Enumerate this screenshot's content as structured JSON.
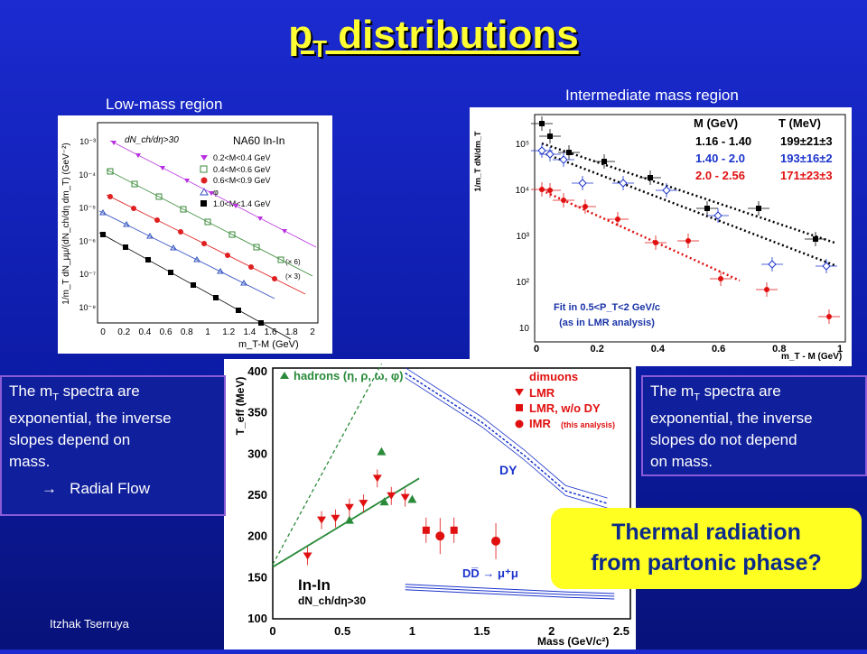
{
  "slide": {
    "title_main": "p",
    "title_sub": "T",
    "title_rest": " distributions",
    "caption_left": "Low-mass region",
    "caption_right": "Intermediate mass region",
    "left_text": {
      "line1a": "The m",
      "line1sub": "T",
      "line1b": " spectra are",
      "line2": "exponential, the inverse",
      "line3": "slopes depend on",
      "line4": "mass.",
      "arrow": "→",
      "flow": "Radial  Flow"
    },
    "right_text": {
      "line1a": "The m",
      "line1sub": "T",
      "line1b": " spectra are",
      "line2": "exponential, the inverse",
      "line3": "slopes do not depend",
      "line4": "on mass."
    },
    "highlight": {
      "line1": "Thermal radiation",
      "line2": "from partonic phase?"
    },
    "footer": "Itzhak Tserruya"
  },
  "plot_lmr": {
    "ylabel": "1/m_T dN_μμ/(dN_ch/dη dm_T) (GeV⁻²)",
    "xlabel": "m_T-M (GeV)",
    "label_dn": "dN_ch/dη>30",
    "label_exp": "NA60 In-In",
    "legend": [
      "0.2<M<0.4 GeV",
      "0.4<M<0.6 GeV",
      "0.6<M<0.9 GeV",
      "φ",
      "1.0<M<1.4 GeV"
    ],
    "scale1": "(× 6)",
    "scale2": "(× 3)",
    "xticks": [
      "0",
      "0.2",
      "0.4",
      "0.6",
      "0.8",
      "1",
      "1.2",
      "1.4",
      "1.6",
      "1.8",
      "2"
    ],
    "yticks": [
      "10⁻³",
      "10⁻⁴",
      "10⁻⁵",
      "10⁻⁶",
      "10⁻⁷",
      "10⁻⁸"
    ]
  },
  "plot_imr": {
    "ylabel": "1/m_T dN/dm_T",
    "xlabel": "m_T - M  (GeV)",
    "hdr_m": "M (GeV)",
    "hdr_t": "T (MeV)",
    "rows": [
      {
        "m": "1.16 - 1.40",
        "t": "199±21±3",
        "color": "#000000"
      },
      {
        "m": "1.40 - 2.0",
        "t": "193±16±2",
        "color": "#1a33cc"
      },
      {
        "m": "2.0  - 2.56",
        "t": "171±23±3",
        "color": "#e01010"
      }
    ],
    "fit1": "Fit in 0.5<P_T<2 GeV/c",
    "fit2": "(as in LMR analysis)",
    "xticks": [
      "0",
      "0.2",
      "0.4",
      "0.6",
      "0.8",
      "1"
    ],
    "yticks": [
      "10⁵",
      "10⁴",
      "10³",
      "10²",
      "10"
    ]
  },
  "plot_teff": {
    "ylabel": "T_eff (MeV)",
    "xlabel": "Mass (GeV/c²)",
    "hadrons": "hadrons (η, ρ, ω, φ)",
    "dimuons": "dimuons",
    "lmr": "LMR",
    "lmr_dy": "LMR, w/o DY",
    "imr": "IMR",
    "imr_note": "(this analysis)",
    "dy": "DY",
    "ddbar": "DD̅ → μ⁺μ",
    "inin": "In-In",
    "dn": "dN_ch/dη>30",
    "xticks": [
      "0",
      "0.5",
      "1",
      "1.5",
      "2",
      "2.5"
    ],
    "yticks": [
      "100",
      "150",
      "200",
      "250",
      "300",
      "350",
      "400"
    ]
  }
}
